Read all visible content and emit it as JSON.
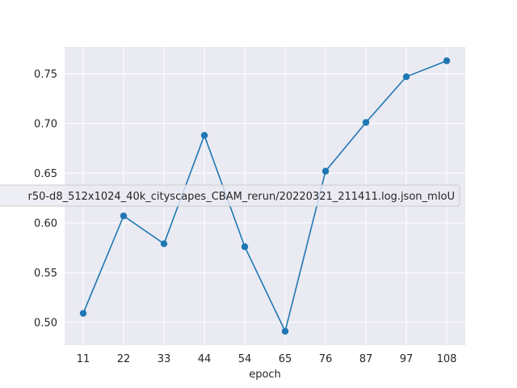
{
  "chart_data": {
    "type": "line",
    "title": "",
    "xlabel": "epoch",
    "ylabel": "",
    "categories": [
      "11",
      "22",
      "33",
      "44",
      "54",
      "65",
      "76",
      "87",
      "97",
      "108"
    ],
    "series": [
      {
        "name": "r50-d8_512x1024_40k_cityscapes_CBAM_rerun/20220321_211411.log.json_mIoU",
        "values": [
          0.509,
          0.607,
          0.579,
          0.688,
          0.576,
          0.491,
          0.652,
          0.701,
          0.747,
          0.763
        ],
        "color": "#1f77b4"
      }
    ],
    "yticks": [
      0.5,
      0.55,
      0.6,
      0.65,
      0.7,
      0.75
    ],
    "ylim": [
      0.477,
      0.777
    ],
    "grid": true,
    "legend_position": "center-left",
    "background": "#eaeaf2"
  }
}
